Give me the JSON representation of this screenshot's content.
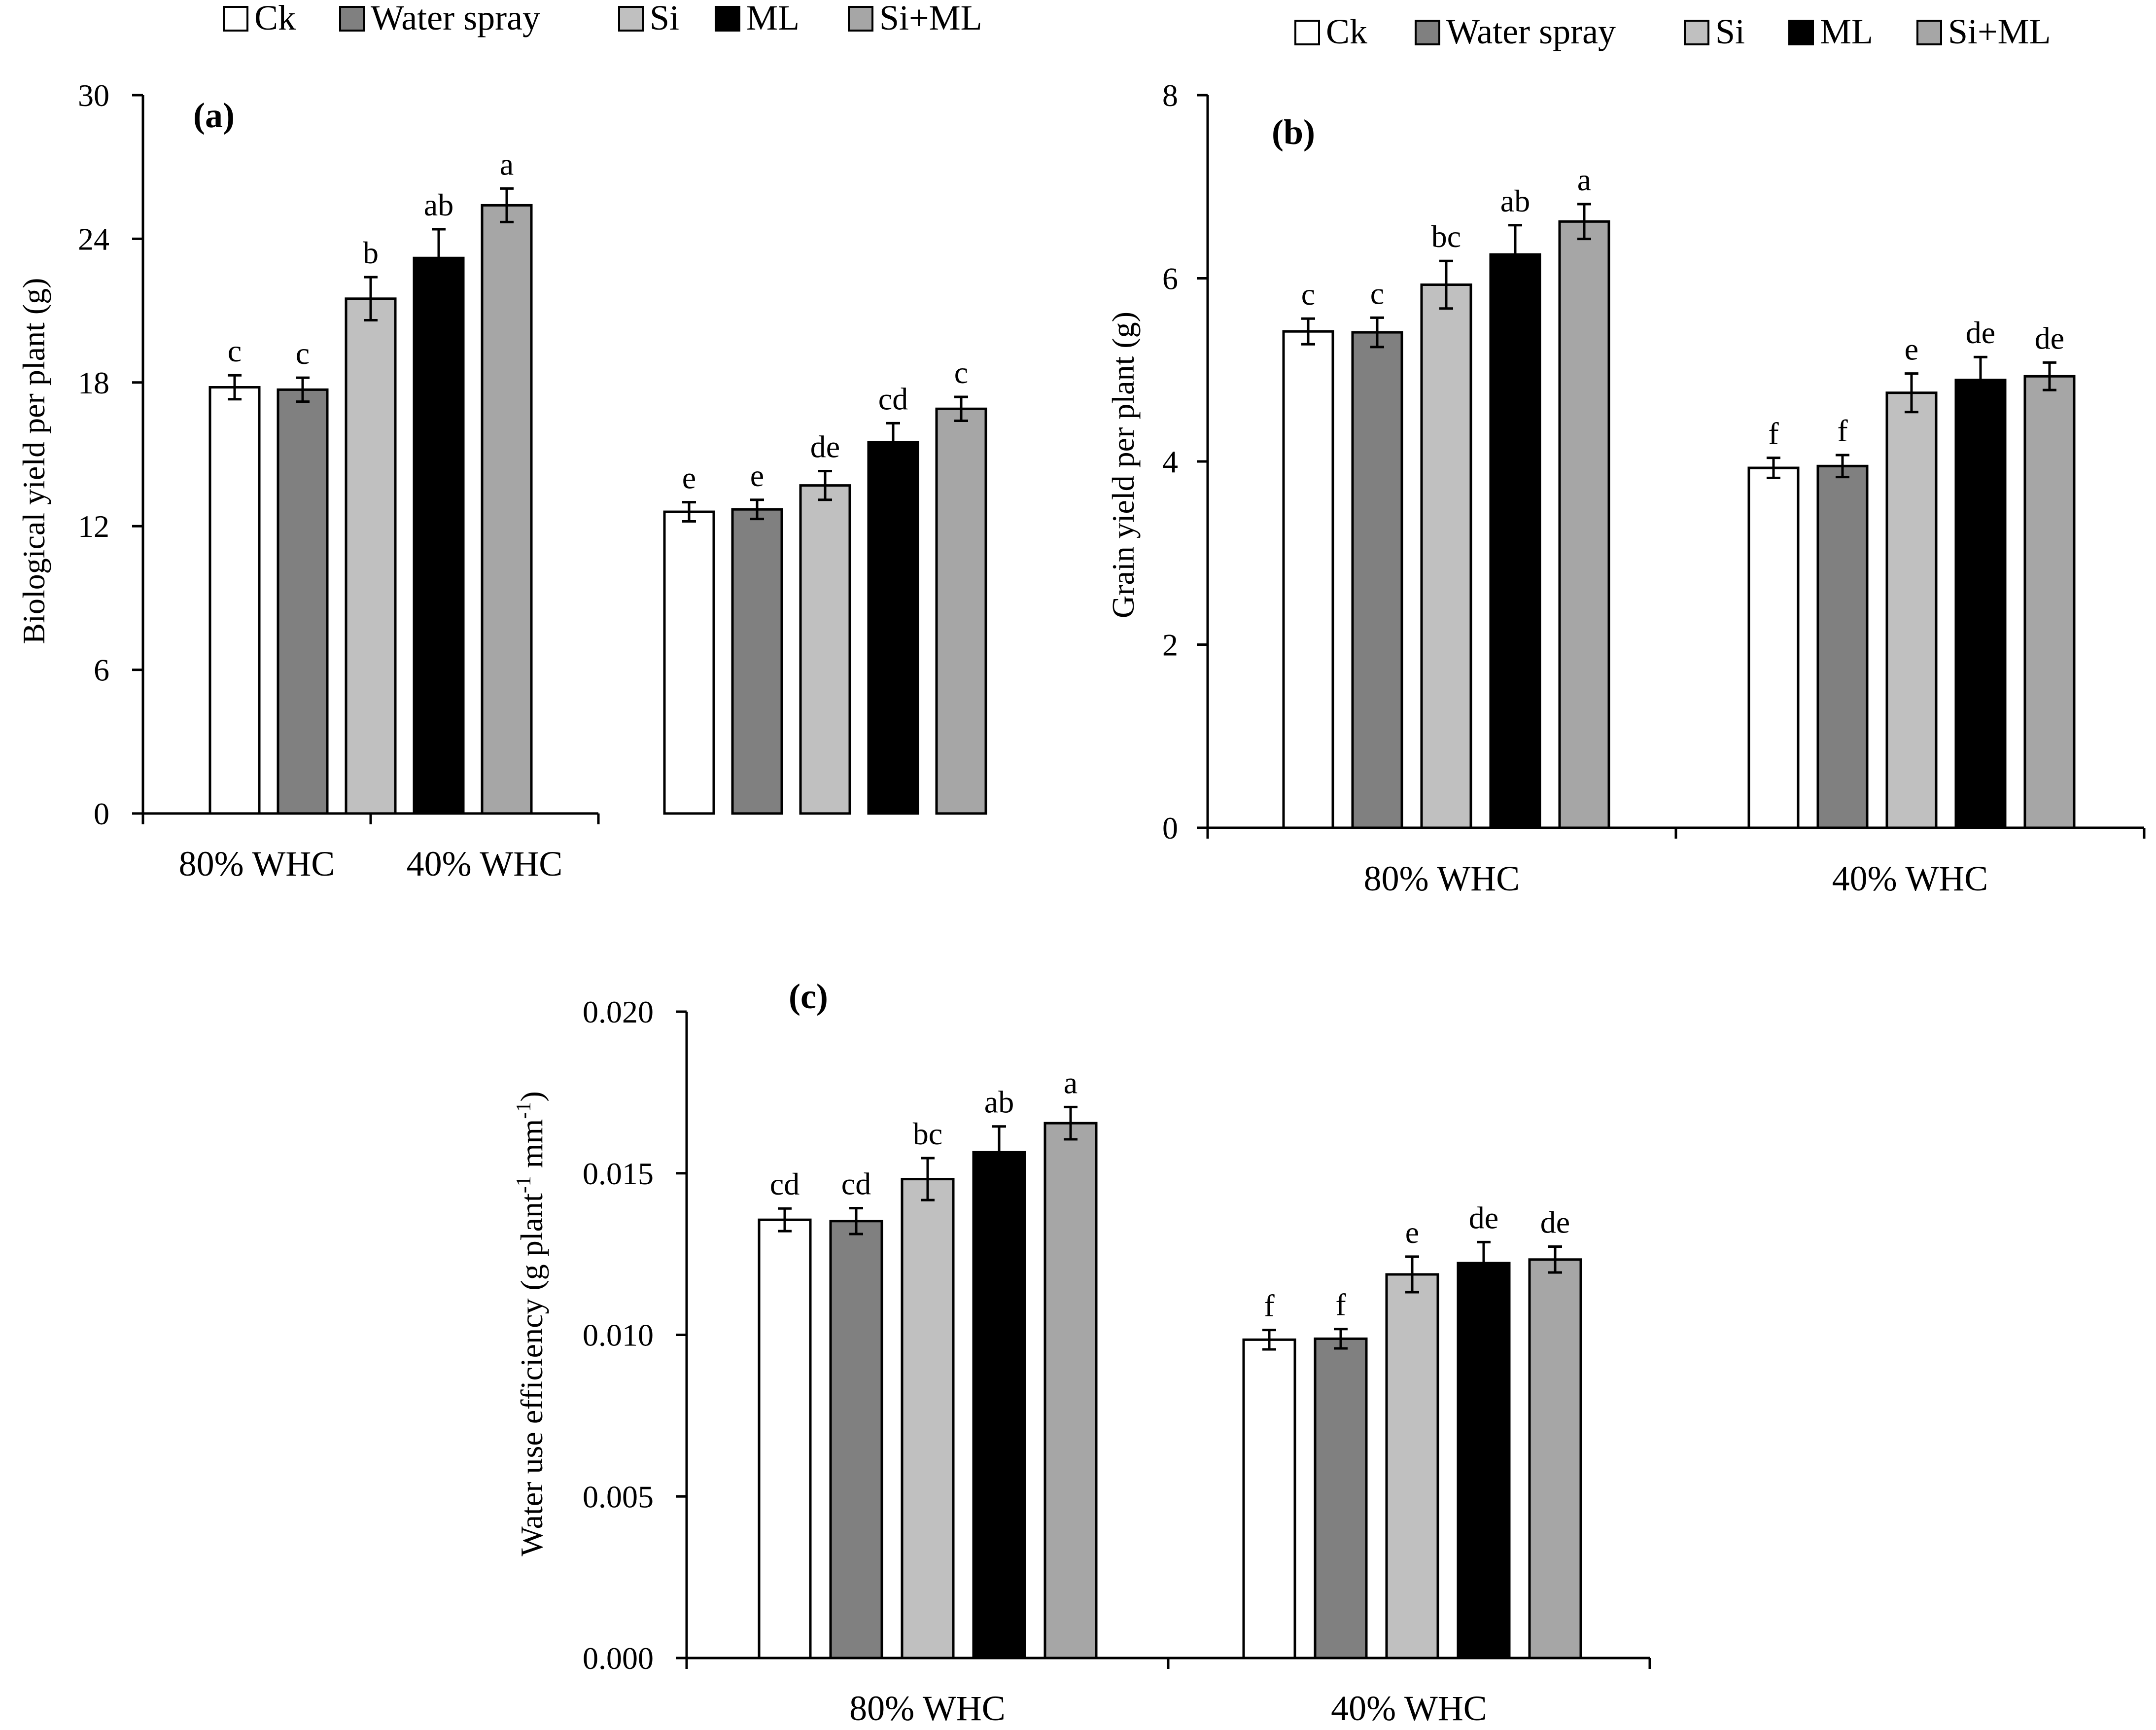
{
  "colors": {
    "Ck": "#ffffff",
    "Water spray": "#808080",
    "Si": "#c0c0c0",
    "ML": "#000000",
    "Si+ML": "#a6a6a6",
    "axis": "#000000"
  },
  "chart_data": [
    {
      "type": "bar",
      "panel_label": "(a)",
      "categories": [
        "80% WHC",
        "40% WHC"
      ],
      "legend": [
        "Ck",
        "Water spray",
        "Si",
        "ML",
        "Si+ML"
      ],
      "ylabel": "Biological yield per plant (g)",
      "ylim": [
        0,
        30
      ],
      "yticks": [
        "0",
        "6",
        "12",
        "18",
        "24",
        "30"
      ],
      "series": [
        {
          "name": "Ck",
          "values": [
            17.8,
            12.6
          ],
          "errors": [
            0.5,
            0.4
          ],
          "letters": [
            "c",
            "e"
          ]
        },
        {
          "name": "Water spray",
          "values": [
            17.7,
            12.7
          ],
          "errors": [
            0.5,
            0.4
          ],
          "letters": [
            "c",
            "e"
          ]
        },
        {
          "name": "Si",
          "values": [
            21.5,
            13.7
          ],
          "errors": [
            0.9,
            0.6
          ],
          "letters": [
            "b",
            "de"
          ]
        },
        {
          "name": "ML",
          "values": [
            23.2,
            15.5
          ],
          "errors": [
            1.2,
            0.8
          ],
          "letters": [
            "ab",
            "cd"
          ]
        },
        {
          "name": "Si+ML",
          "values": [
            25.4,
            16.9
          ],
          "errors": [
            0.7,
            0.5
          ],
          "letters": [
            "a",
            "c"
          ]
        }
      ]
    },
    {
      "type": "bar",
      "panel_label": "(b)",
      "categories": [
        "80% WHC",
        "40% WHC"
      ],
      "legend": [
        "Ck",
        "Water spray",
        "Si",
        "ML",
        "Si+ML"
      ],
      "ylabel": "Grain yield per plant (g)",
      "ylim": [
        0,
        8
      ],
      "yticks": [
        "0",
        "2",
        "4",
        "6",
        "8"
      ],
      "series": [
        {
          "name": "Ck",
          "values": [
            5.42,
            3.93
          ],
          "errors": [
            0.14,
            0.11
          ],
          "letters": [
            "c",
            "f"
          ]
        },
        {
          "name": "Water spray",
          "values": [
            5.41,
            3.95
          ],
          "errors": [
            0.16,
            0.12
          ],
          "letters": [
            "c",
            "f"
          ]
        },
        {
          "name": "Si",
          "values": [
            5.93,
            4.75
          ],
          "errors": [
            0.26,
            0.21
          ],
          "letters": [
            "bc",
            "e"
          ]
        },
        {
          "name": "ML",
          "values": [
            6.26,
            4.89
          ],
          "errors": [
            0.32,
            0.25
          ],
          "letters": [
            "ab",
            "de"
          ]
        },
        {
          "name": "Si+ML",
          "values": [
            6.62,
            4.93
          ],
          "errors": [
            0.19,
            0.15
          ],
          "letters": [
            "a",
            "de"
          ]
        }
      ]
    },
    {
      "type": "bar",
      "panel_label": "(c)",
      "categories": [
        "80% WHC",
        "40% WHC"
      ],
      "ylabel_main": "Water use efficiency (g plant",
      "ylabel_sup1": "-1",
      "ylabel_mid": " mm",
      "ylabel_sup2": "-1",
      "ylabel_end": ")",
      "ylim": [
        0,
        0.02
      ],
      "yticks": [
        "0.000",
        "0.005",
        "0.010",
        "0.015",
        "0.020"
      ],
      "series": [
        {
          "name": "Ck",
          "values": [
            0.01356,
            0.00985
          ],
          "errors": [
            0.00035,
            0.0003
          ],
          "letters": [
            "cd",
            "f"
          ]
        },
        {
          "name": "Water spray",
          "values": [
            0.01352,
            0.00988
          ],
          "errors": [
            0.0004,
            0.0003
          ],
          "letters": [
            "cd",
            "f"
          ]
        },
        {
          "name": "Si",
          "values": [
            0.01482,
            0.01187
          ],
          "errors": [
            0.00065,
            0.00055
          ],
          "letters": [
            "bc",
            "e"
          ]
        },
        {
          "name": "ML",
          "values": [
            0.01565,
            0.01222
          ],
          "errors": [
            0.0008,
            0.00065
          ],
          "letters": [
            "ab",
            "de"
          ]
        },
        {
          "name": "Si+ML",
          "values": [
            0.01655,
            0.01233
          ],
          "errors": [
            0.0005,
            0.0004
          ],
          "letters": [
            "a",
            "de"
          ]
        }
      ]
    }
  ]
}
